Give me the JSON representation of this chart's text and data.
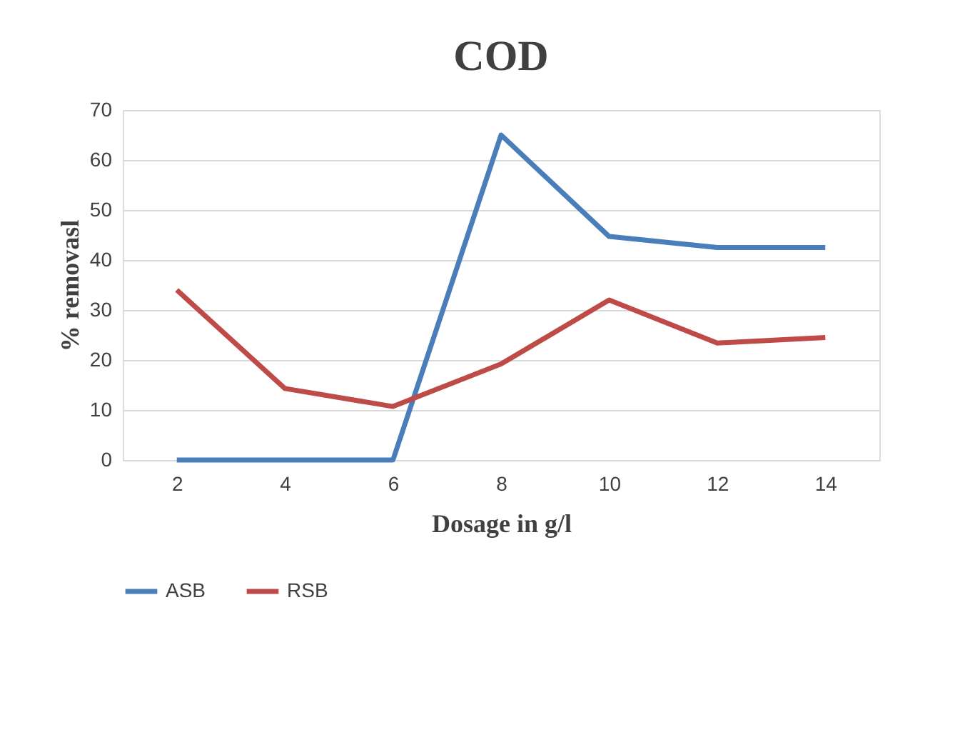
{
  "chart_data": {
    "type": "line",
    "title": "COD",
    "xlabel": "Dosage in g/l",
    "ylabel": "% removasl",
    "categories": [
      "2",
      "4",
      "6",
      "8",
      "10",
      "12",
      "14"
    ],
    "series": [
      {
        "name": "ASB",
        "color": "#4a7ebb",
        "values": [
          0,
          0,
          0,
          65,
          44.7,
          42.5,
          42.5
        ]
      },
      {
        "name": "RSB",
        "color": "#be4b48",
        "values": [
          34,
          14.3,
          10.7,
          19.2,
          32,
          23.4,
          24.5
        ]
      }
    ],
    "ylim": [
      0,
      70
    ],
    "yticks": [
      0,
      10,
      20,
      30,
      40,
      50,
      60,
      70
    ],
    "grid": "y",
    "legend": "bottom",
    "marker": "none",
    "line_style": "solid"
  }
}
